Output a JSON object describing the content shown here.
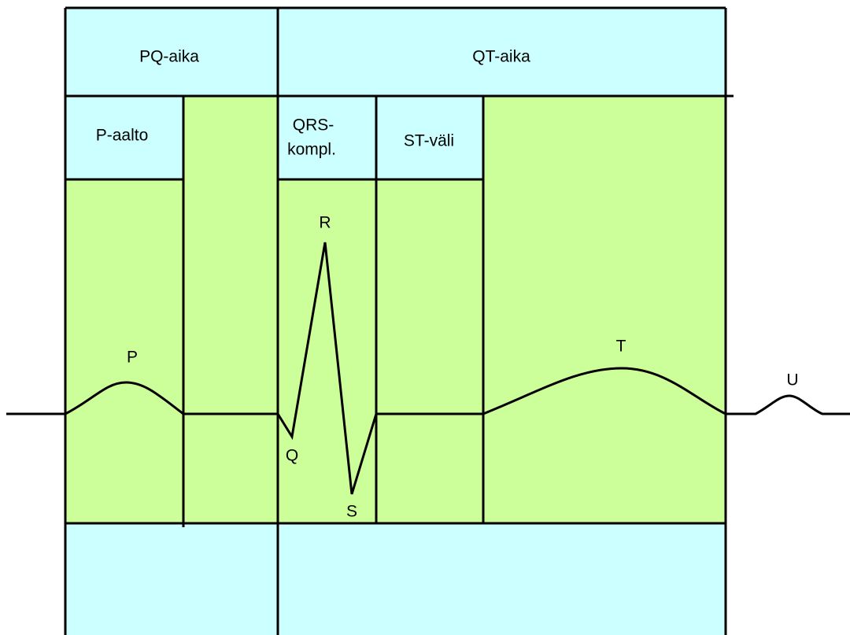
{
  "intervals": [
    "PQ-aika",
    "QT-aika"
  ],
  "segments": {
    "p_wave": "P-aalto",
    "qrs": [
      "QRS-",
      "kompl."
    ],
    "st": "ST-väli"
  },
  "waves": [
    "P",
    "Q",
    "R",
    "S",
    "T",
    "U"
  ]
}
